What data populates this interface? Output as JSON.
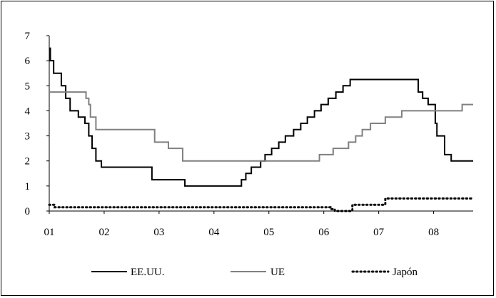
{
  "chart_data": {
    "type": "line",
    "title": "",
    "xlabel": "",
    "ylabel": "",
    "ylim": [
      0,
      7
    ],
    "xlim": [
      2001.0,
      2008.72
    ],
    "grid": false,
    "legend_position": "bottom",
    "x_ticks": [
      {
        "value": 2001,
        "label": "01"
      },
      {
        "value": 2002,
        "label": "02"
      },
      {
        "value": 2003,
        "label": "03"
      },
      {
        "value": 2004,
        "label": "04"
      },
      {
        "value": 2005,
        "label": "05"
      },
      {
        "value": 2006,
        "label": "06"
      },
      {
        "value": 2007,
        "label": "07"
      },
      {
        "value": 2008,
        "label": "08"
      }
    ],
    "y_ticks": [
      {
        "value": 0,
        "label": "0"
      },
      {
        "value": 1,
        "label": "1"
      },
      {
        "value": 2,
        "label": "2"
      },
      {
        "value": 3,
        "label": "3"
      },
      {
        "value": 4,
        "label": "4"
      },
      {
        "value": 5,
        "label": "5"
      },
      {
        "value": 6,
        "label": "6"
      },
      {
        "value": 7,
        "label": "7"
      }
    ],
    "series": [
      {
        "name": "EE.UU.",
        "step": true,
        "color": "#000000",
        "style": "solid",
        "points": [
          [
            2001.0,
            6.5
          ],
          [
            2001.02,
            6.0
          ],
          [
            2001.08,
            5.5
          ],
          [
            2001.22,
            5.0
          ],
          [
            2001.3,
            4.5
          ],
          [
            2001.38,
            4.0
          ],
          [
            2001.53,
            3.75
          ],
          [
            2001.65,
            3.5
          ],
          [
            2001.72,
            3.0
          ],
          [
            2001.78,
            2.5
          ],
          [
            2001.85,
            2.0
          ],
          [
            2001.95,
            1.75
          ],
          [
            2002.87,
            1.25
          ],
          [
            2003.47,
            1.0
          ],
          [
            2004.5,
            1.25
          ],
          [
            2004.58,
            1.5
          ],
          [
            2004.68,
            1.75
          ],
          [
            2004.85,
            2.0
          ],
          [
            2004.93,
            2.25
          ],
          [
            2005.05,
            2.5
          ],
          [
            2005.18,
            2.75
          ],
          [
            2005.3,
            3.0
          ],
          [
            2005.45,
            3.25
          ],
          [
            2005.58,
            3.5
          ],
          [
            2005.7,
            3.75
          ],
          [
            2005.83,
            4.0
          ],
          [
            2005.95,
            4.25
          ],
          [
            2006.08,
            4.5
          ],
          [
            2006.22,
            4.75
          ],
          [
            2006.35,
            5.0
          ],
          [
            2006.48,
            5.25
          ],
          [
            2007.72,
            4.75
          ],
          [
            2007.8,
            4.5
          ],
          [
            2007.9,
            4.25
          ],
          [
            2008.03,
            3.5
          ],
          [
            2008.06,
            3.0
          ],
          [
            2008.2,
            2.25
          ],
          [
            2008.32,
            2.0
          ],
          [
            2008.72,
            2.0
          ]
        ]
      },
      {
        "name": "UE",
        "step": true,
        "color": "#808080",
        "style": "solid",
        "points": [
          [
            2001.0,
            4.75
          ],
          [
            2001.67,
            4.5
          ],
          [
            2001.72,
            4.25
          ],
          [
            2001.75,
            3.75
          ],
          [
            2001.85,
            3.25
          ],
          [
            2002.92,
            2.75
          ],
          [
            2003.17,
            2.5
          ],
          [
            2003.43,
            2.0
          ],
          [
            2005.92,
            2.25
          ],
          [
            2006.17,
            2.5
          ],
          [
            2006.45,
            2.75
          ],
          [
            2006.58,
            3.0
          ],
          [
            2006.7,
            3.25
          ],
          [
            2006.85,
            3.5
          ],
          [
            2007.12,
            3.75
          ],
          [
            2007.42,
            4.0
          ],
          [
            2008.52,
            4.25
          ],
          [
            2008.72,
            4.25
          ]
        ]
      },
      {
        "name": "Japón",
        "step": true,
        "color": "#000000",
        "style": "dotted",
        "points": [
          [
            2001.0,
            0.25
          ],
          [
            2001.1,
            0.15
          ],
          [
            2006.12,
            0.08
          ],
          [
            2006.2,
            0.0
          ],
          [
            2006.52,
            0.25
          ],
          [
            2007.12,
            0.5
          ],
          [
            2008.72,
            0.5
          ]
        ]
      }
    ]
  }
}
